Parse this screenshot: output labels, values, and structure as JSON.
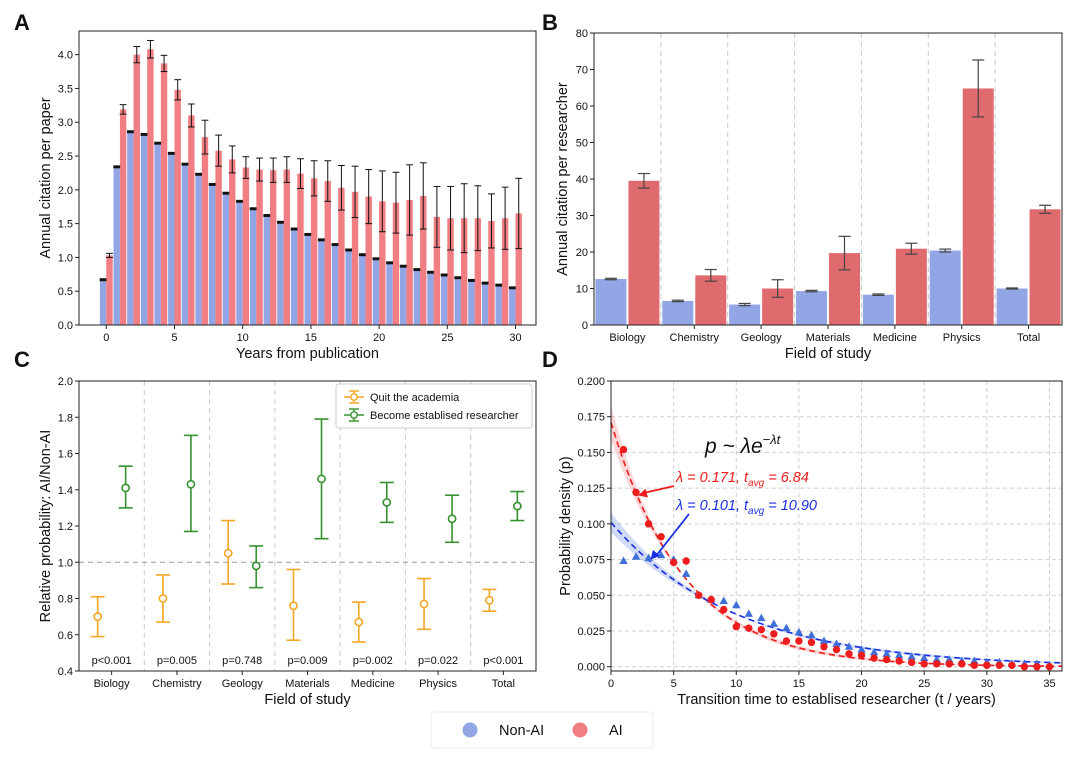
{
  "colors": {
    "non_ai": "#92a6e5",
    "ai": "#f07e82",
    "ai_dark": "#e06b6f",
    "quit": "#f5a623",
    "established": "#35922f",
    "fitA": "#ee1c1c",
    "fitN": "#1a2ee6",
    "markN": "#3f6fd8",
    "markA": "#ee1c1c"
  },
  "figure_legend": [
    {
      "label": "Non-AI",
      "color": "#92a6e5"
    },
    {
      "label": "AI",
      "color": "#f07e82"
    }
  ],
  "chart_data": [
    {
      "panel": "A",
      "type": "bar",
      "xlabel": "Years from publication",
      "ylabel": "Annual citation per paper",
      "xlim": [
        -2,
        31.5
      ],
      "ylim": [
        0,
        4.35
      ],
      "xticks": [
        "0",
        "5",
        "10",
        "15",
        "20",
        "25",
        "30"
      ],
      "yticks": [
        "0.0",
        "0.5",
        "1.0",
        "1.5",
        "2.0",
        "2.5",
        "3.0",
        "3.5",
        "4.0"
      ],
      "x": [
        0,
        1,
        2,
        3,
        4,
        5,
        6,
        7,
        8,
        9,
        10,
        11,
        12,
        13,
        14,
        15,
        16,
        17,
        18,
        19,
        20,
        21,
        22,
        23,
        24,
        25,
        26,
        27,
        28,
        29,
        30
      ],
      "series": [
        {
          "name": "Non-AI",
          "values": [
            0.67,
            2.34,
            2.86,
            2.82,
            2.69,
            2.54,
            2.38,
            2.23,
            2.08,
            1.95,
            1.83,
            1.72,
            1.62,
            1.52,
            1.42,
            1.34,
            1.26,
            1.19,
            1.11,
            1.04,
            0.98,
            0.92,
            0.87,
            0.82,
            0.78,
            0.74,
            0.7,
            0.66,
            0.62,
            0.59,
            0.55
          ],
          "errors": [
            0.01,
            0.01,
            0.01,
            0.01,
            0.01,
            0.01,
            0.01,
            0.01,
            0.01,
            0.01,
            0.01,
            0.01,
            0.01,
            0.01,
            0.01,
            0.01,
            0.01,
            0.01,
            0.01,
            0.01,
            0.01,
            0.01,
            0.01,
            0.01,
            0.01,
            0.01,
            0.01,
            0.01,
            0.01,
            0.01,
            0.01
          ]
        },
        {
          "name": "AI",
          "values": [
            1.03,
            3.19,
            4.0,
            4.08,
            3.87,
            3.48,
            3.1,
            2.78,
            2.58,
            2.45,
            2.33,
            2.3,
            2.29,
            2.3,
            2.24,
            2.17,
            2.13,
            2.03,
            1.97,
            1.9,
            1.83,
            1.81,
            1.85,
            1.91,
            1.6,
            1.58,
            1.58,
            1.58,
            1.54,
            1.58,
            1.65
          ],
          "errors": [
            0.03,
            0.07,
            0.12,
            0.13,
            0.12,
            0.15,
            0.17,
            0.25,
            0.23,
            0.2,
            0.16,
            0.17,
            0.18,
            0.19,
            0.22,
            0.26,
            0.3,
            0.33,
            0.38,
            0.4,
            0.45,
            0.45,
            0.52,
            0.49,
            0.45,
            0.47,
            0.51,
            0.48,
            0.4,
            0.46,
            0.52
          ]
        }
      ]
    },
    {
      "panel": "B",
      "type": "bar",
      "xlabel": "Field of study",
      "ylabel": "Annual citation per researcher",
      "ylim": [
        0,
        80
      ],
      "yticks": [
        "0",
        "10",
        "20",
        "30",
        "40",
        "50",
        "60",
        "70",
        "80"
      ],
      "categories": [
        "Biology",
        "Chemistry",
        "Geology",
        "Materials",
        "Medicine",
        "Physics",
        "Total"
      ],
      "series": [
        {
          "name": "Non-AI",
          "values": [
            12.6,
            6.6,
            5.6,
            9.3,
            8.3,
            20.4,
            10.0
          ],
          "errors": [
            0.2,
            0.2,
            0.3,
            0.2,
            0.2,
            0.4,
            0.15
          ]
        },
        {
          "name": "AI",
          "values": [
            39.5,
            13.6,
            10.0,
            19.7,
            20.9,
            64.8,
            31.7
          ],
          "errors": [
            2.0,
            1.6,
            2.4,
            4.6,
            1.5,
            7.8,
            1.1
          ]
        }
      ]
    },
    {
      "panel": "C",
      "type": "scatter",
      "xlabel": "Field of study",
      "ylabel": "Relative probability: AI/Non-AI",
      "ylim": [
        0.4,
        2.0
      ],
      "yticks": [
        "0.4",
        "0.6",
        "0.8",
        "1.0",
        "1.2",
        "1.4",
        "1.6",
        "1.8",
        "2.0"
      ],
      "reference_line": 1.0,
      "categories": [
        "Biology",
        "Chemistry",
        "Geology",
        "Materials",
        "Medicine",
        "Physics",
        "Total"
      ],
      "legend": [
        "Quit the academia",
        "Become establised researcher"
      ],
      "series": [
        {
          "name": "Quit the academia",
          "values": [
            0.7,
            0.8,
            1.05,
            0.76,
            0.67,
            0.77,
            0.79
          ],
          "lower": [
            0.59,
            0.67,
            0.88,
            0.57,
            0.56,
            0.63,
            0.73
          ],
          "upper": [
            0.81,
            0.93,
            1.23,
            0.96,
            0.78,
            0.91,
            0.85
          ]
        },
        {
          "name": "Become establised researcher",
          "values": [
            1.41,
            1.43,
            0.98,
            1.46,
            1.33,
            1.24,
            1.31
          ],
          "lower": [
            1.3,
            1.17,
            0.86,
            1.13,
            1.22,
            1.11,
            1.23
          ],
          "upper": [
            1.53,
            1.7,
            1.09,
            1.79,
            1.44,
            1.37,
            1.39
          ]
        }
      ],
      "pvalues": [
        "p<0.001",
        "p=0.005",
        "p=0.748",
        "p=0.009",
        "p=0.002",
        "p=0.022",
        "p<0.001"
      ]
    },
    {
      "panel": "D",
      "type": "scatter",
      "xlabel": "Transition time to establised researcher (t / years)",
      "ylabel": "Probability density (p)",
      "xlim": [
        0,
        36
      ],
      "ylim": [
        -0.003,
        0.2
      ],
      "xticks": [
        "0",
        "5",
        "10",
        "15",
        "20",
        "25",
        "30",
        "35"
      ],
      "yticks": [
        "0.000",
        "0.025",
        "0.050",
        "0.075",
        "0.100",
        "0.125",
        "0.150",
        "0.175",
        "0.200"
      ],
      "formula": "p ~ λe",
      "formula_exponent": "−λt",
      "annotations": [
        {
          "text": "λ = 0.171, t",
          "sub": "avg",
          "rest": " = 6.84",
          "color": "#ee1c1c",
          "points_to": [
            2,
            0.122
          ]
        },
        {
          "text": "λ = 0.101, t",
          "sub": "avg",
          "rest": " = 10.90",
          "color": "#1a2ee6",
          "points_to": [
            3,
            0.077
          ]
        }
      ],
      "fits": [
        {
          "name": "AI",
          "lambda": 0.171
        },
        {
          "name": "Non-AI",
          "lambda": 0.101
        }
      ],
      "series": [
        {
          "name": "Non-AI",
          "marker": "triangle",
          "x": [
            1,
            2,
            3,
            4,
            5,
            6,
            7,
            8,
            9,
            10,
            11,
            12,
            13,
            14,
            15,
            16,
            17,
            18,
            19,
            20,
            21,
            22,
            23,
            24,
            25,
            26,
            27,
            28,
            29,
            30,
            31,
            32,
            33,
            34,
            35
          ],
          "y": [
            0.074,
            0.077,
            0.076,
            0.078,
            0.075,
            0.065,
            0.05,
            0.047,
            0.046,
            0.043,
            0.037,
            0.034,
            0.03,
            0.027,
            0.024,
            0.022,
            0.018,
            0.016,
            0.014,
            0.012,
            0.01,
            0.009,
            0.008,
            0.007,
            0.006,
            0.005,
            0.005,
            0.004,
            0.004,
            0.003,
            0.003,
            0.002,
            0.002,
            0.002,
            0.001
          ]
        },
        {
          "name": "AI",
          "marker": "circle",
          "x": [
            1,
            2,
            3,
            4,
            5,
            6,
            7,
            8,
            9,
            10,
            11,
            12,
            13,
            14,
            15,
            16,
            17,
            18,
            19,
            20,
            21,
            22,
            23,
            24,
            25,
            26,
            27,
            28,
            29,
            30,
            31,
            32,
            33,
            34,
            35
          ],
          "y": [
            0.152,
            0.122,
            0.1,
            0.091,
            0.073,
            0.074,
            0.05,
            0.047,
            0.04,
            0.028,
            0.027,
            0.026,
            0.023,
            0.018,
            0.018,
            0.017,
            0.014,
            0.012,
            0.009,
            0.008,
            0.006,
            0.005,
            0.004,
            0.003,
            0.002,
            0.002,
            0.002,
            0.002,
            0.001,
            0.001,
            0.001,
            0.001,
            0.0,
            0.0,
            0.0
          ]
        }
      ]
    }
  ]
}
